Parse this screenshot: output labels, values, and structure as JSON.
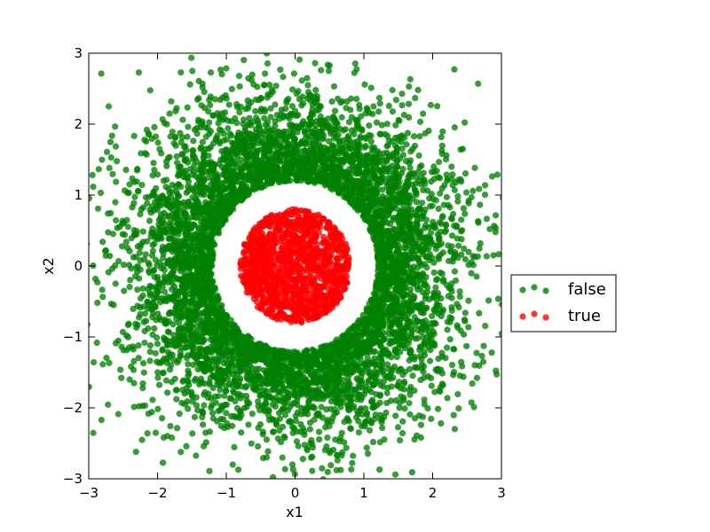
{
  "chart_data": {
    "type": "scatter",
    "title": "",
    "xlabel": "x1",
    "ylabel": "x2",
    "xlim": [
      -3,
      3
    ],
    "ylim": [
      -3,
      3
    ],
    "xticks": [
      -3,
      -2,
      -1,
      0,
      1,
      2,
      3
    ],
    "yticks": [
      -3,
      -2,
      -1,
      0,
      1,
      2,
      3
    ],
    "xtick_labels": [
      "−3",
      "−2",
      "−1",
      "0",
      "1",
      "2",
      "3"
    ],
    "ytick_labels": [
      "−3",
      "−2",
      "−1",
      "0",
      "1",
      "2",
      "3"
    ],
    "grid": false,
    "legend_placement": "center-right-outside",
    "series": [
      {
        "name": "false",
        "color": "#008000",
        "region": "ring",
        "r_min": 1.2,
        "r_max": 4.3,
        "spread": 1.0,
        "approx_count": 6000
      },
      {
        "name": "true",
        "color": "#ff0000",
        "region": "disk",
        "r_min": 0,
        "r_max": 0.8,
        "approx_count": 1200
      }
    ]
  }
}
